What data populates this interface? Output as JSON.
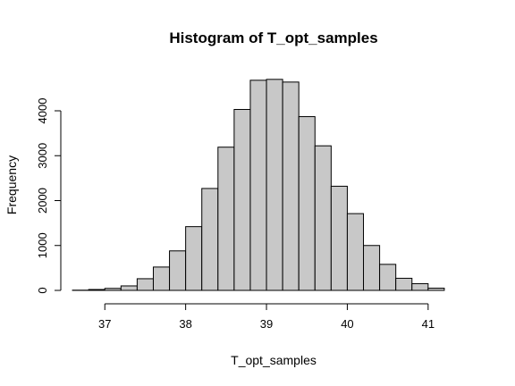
{
  "chart_data": {
    "type": "bar",
    "title": "Histogram of T_opt_samples",
    "xlabel": "T_opt_samples",
    "ylabel": "Frequency",
    "bin_width": 0.2,
    "bin_edges": [
      36.6,
      36.8,
      37.0,
      37.2,
      37.4,
      37.6,
      37.8,
      38.0,
      38.2,
      38.4,
      38.6,
      38.8,
      39.0,
      39.2,
      39.4,
      39.6,
      39.8,
      40.0,
      40.2,
      40.4,
      40.6,
      40.8,
      41.0,
      41.2
    ],
    "values": [
      5,
      20,
      45,
      100,
      260,
      520,
      880,
      1420,
      2270,
      3190,
      4030,
      4680,
      4700,
      4640,
      3870,
      3220,
      2320,
      1710,
      1000,
      580,
      270,
      150,
      50
    ],
    "xlim": [
      36.4,
      41.4
    ],
    "ylim": [
      0,
      4800
    ],
    "x_ticks": [
      "37",
      "38",
      "39",
      "40",
      "41"
    ],
    "y_ticks": [
      "0",
      "1000",
      "2000",
      "3000",
      "4000"
    ],
    "bar_fill": "#c8c8c8",
    "bar_stroke": "#000000",
    "grid": false,
    "legend": "none"
  }
}
